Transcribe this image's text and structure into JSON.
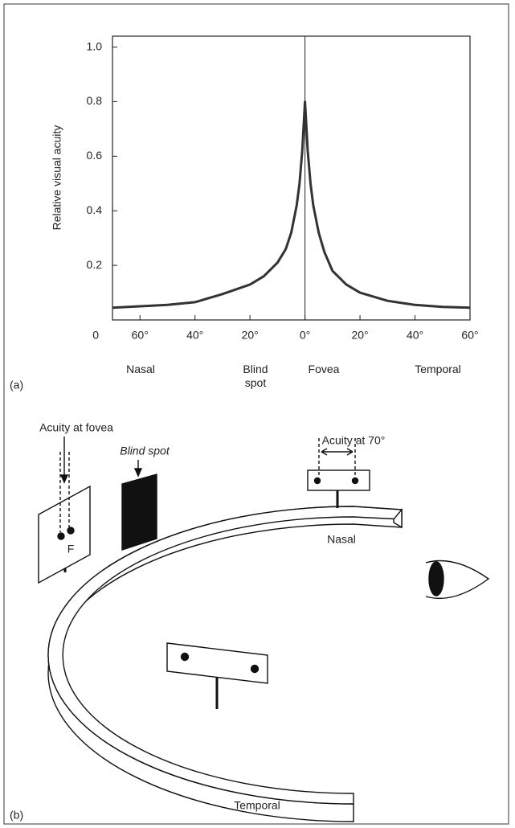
{
  "chart_data": {
    "type": "line",
    "panel_label": "(a)",
    "y_label": "Relative visual acuity",
    "x": [
      -70,
      -60,
      -50,
      -40,
      -30,
      -20,
      -15,
      -10,
      -7,
      -5,
      -3,
      -2,
      -1,
      0,
      1,
      2,
      3,
      5,
      7,
      10,
      15,
      20,
      30,
      40,
      50,
      60
    ],
    "values": [
      0.045,
      0.05,
      0.055,
      0.065,
      0.095,
      0.13,
      0.16,
      0.21,
      0.26,
      0.32,
      0.42,
      0.5,
      0.62,
      0.8,
      0.62,
      0.5,
      0.42,
      0.32,
      0.25,
      0.18,
      0.13,
      0.1,
      0.07,
      0.055,
      0.048,
      0.045
    ],
    "color": "#333333",
    "xlim": [
      -70,
      60
    ],
    "ylim": [
      0,
      1.04
    ],
    "xticks": [
      {
        "value": -60,
        "label": "60°"
      },
      {
        "value": -40,
        "label": "40°"
      },
      {
        "value": -20,
        "label": "20°"
      },
      {
        "value": 0,
        "label": "0°"
      },
      {
        "value": 20,
        "label": "20°"
      },
      {
        "value": 40,
        "label": "40°"
      },
      {
        "value": 60,
        "label": "60°"
      }
    ],
    "yticks": [
      0,
      0.2,
      0.4,
      0.6,
      0.8,
      {
        "value": 1,
        "label": "1.0"
      }
    ],
    "region_labels": [
      "Nasal",
      "Blind spot",
      "Fovea",
      "Temporal"
    ]
  },
  "diagram": {
    "panel_label": "(b)",
    "fovea_label": "Acuity at fovea",
    "blind_spot_label": "Blind spot",
    "acuity_70_label": "Acuity at 70°",
    "fovea_mark": "F",
    "nasal_label": "Nasal",
    "temporal_label": "Temporal"
  }
}
